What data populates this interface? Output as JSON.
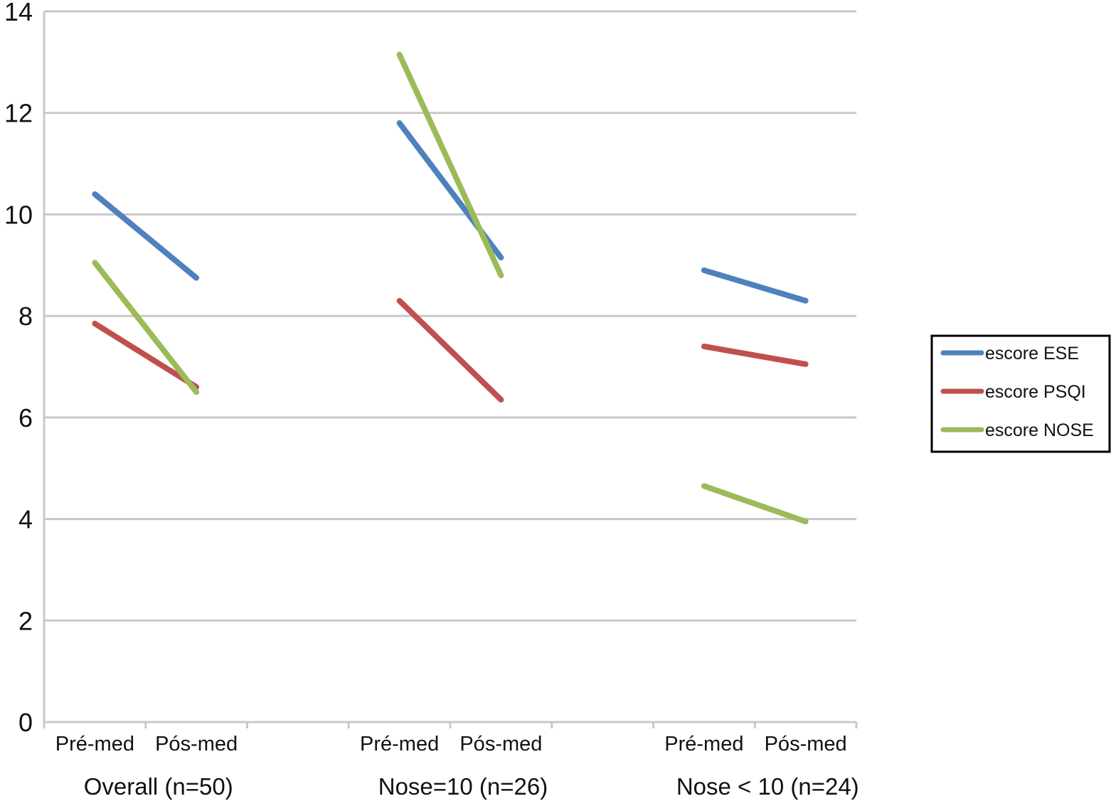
{
  "chart_data": {
    "type": "line",
    "title": "",
    "xlabel": "",
    "ylabel": "",
    "ylim": [
      0,
      14
    ],
    "yticks": [
      0,
      2,
      4,
      6,
      8,
      10,
      12,
      14
    ],
    "grid": true,
    "legend_position": "right",
    "groups": [
      {
        "label": "Overall (n=50)",
        "categories": [
          "Pré-med",
          "Pós-med"
        ]
      },
      {
        "label": "Nose=10 (n=26)",
        "categories": [
          "Pré-med",
          "Pós-med"
        ]
      },
      {
        "label": "Nose < 10 (n=24)",
        "categories": [
          "Pré-med",
          "Pós-med"
        ]
      }
    ],
    "series": [
      {
        "name": "escore ESE",
        "color": "#4F81BD",
        "values": [
          [
            10.4,
            8.75
          ],
          [
            11.8,
            9.15
          ],
          [
            8.9,
            8.3
          ]
        ]
      },
      {
        "name": "escore PSQI",
        "color": "#C0504D",
        "values": [
          [
            7.85,
            6.6
          ],
          [
            8.3,
            6.35
          ],
          [
            7.4,
            7.05
          ]
        ]
      },
      {
        "name": "escore NOSE",
        "color": "#9BBB59",
        "values": [
          [
            9.05,
            6.5
          ],
          [
            13.15,
            8.8
          ],
          [
            4.65,
            3.95
          ]
        ]
      }
    ]
  }
}
